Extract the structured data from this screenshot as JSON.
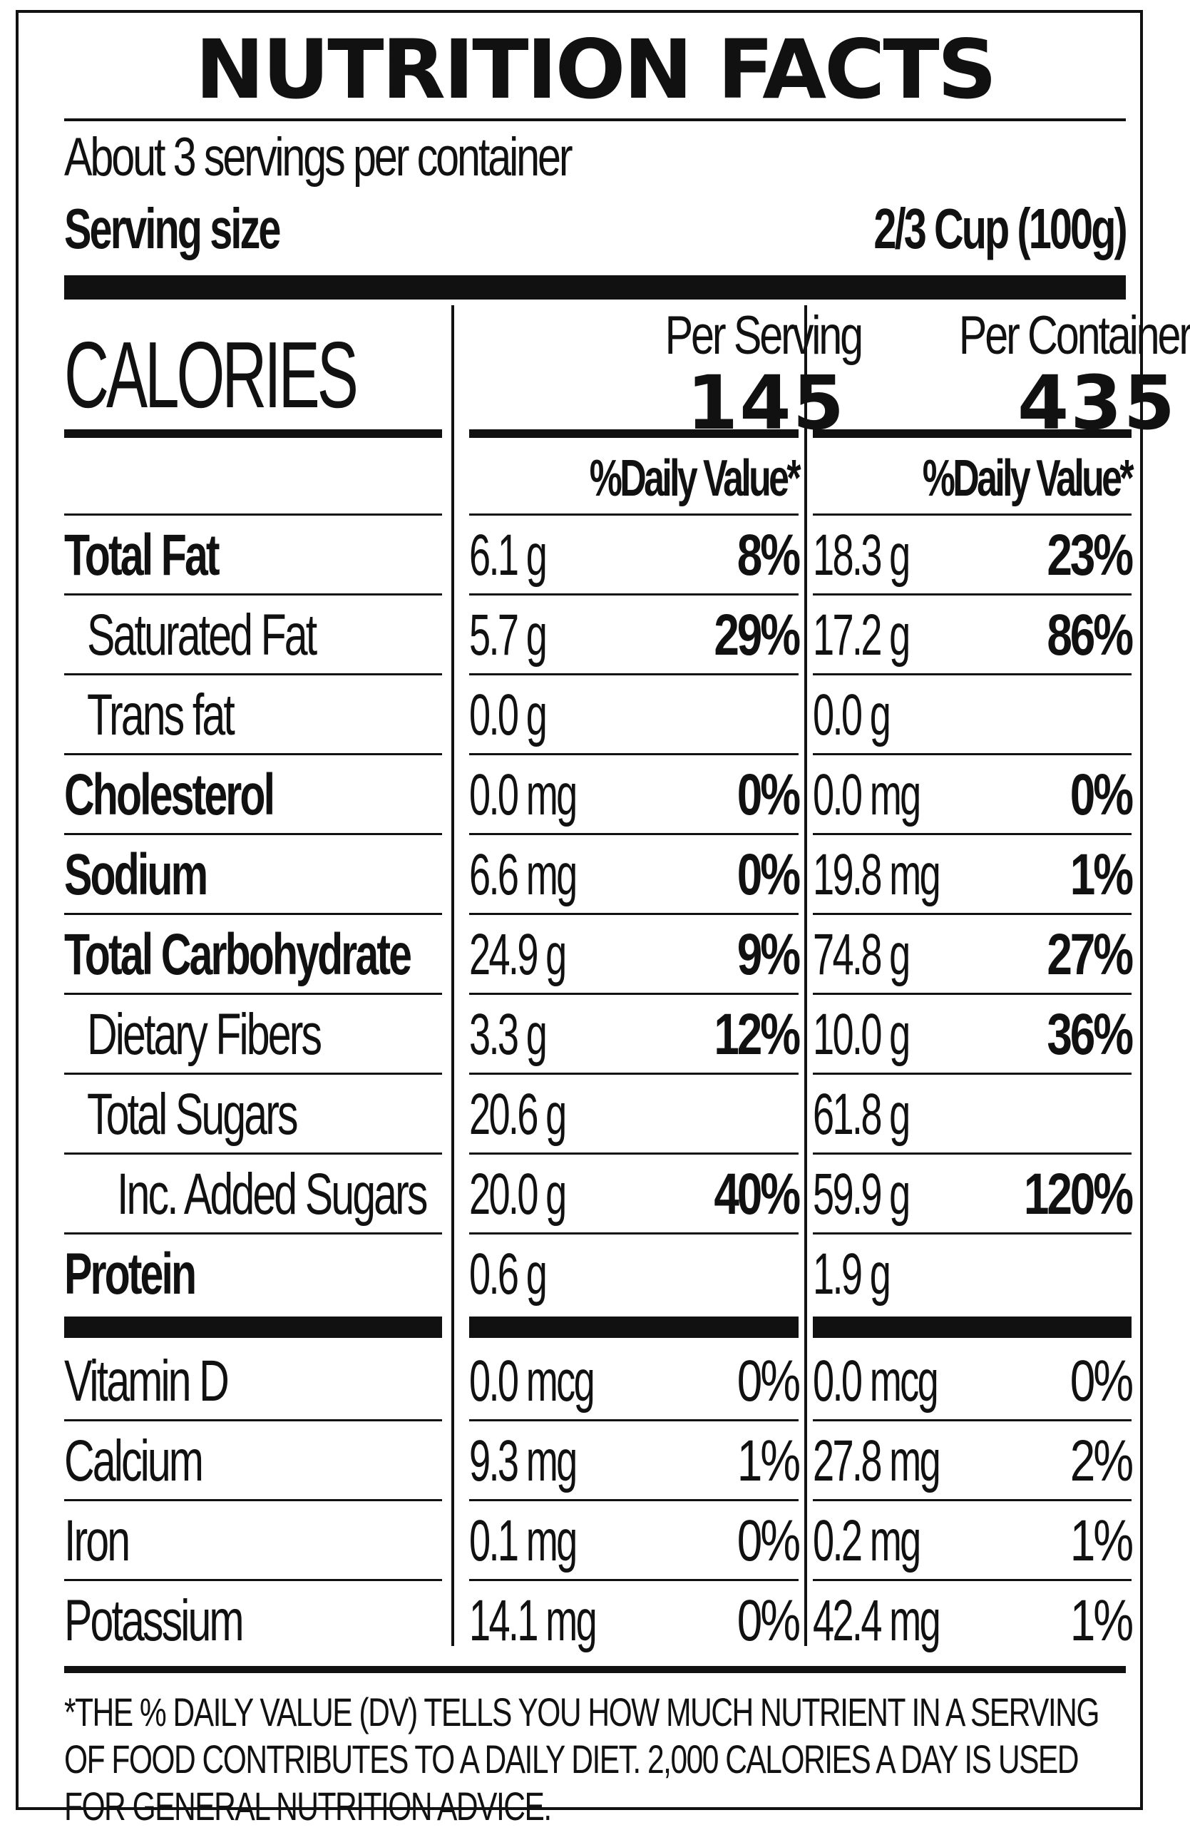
{
  "title": "NUTRITION FACTS",
  "servings_per_container": "About 3 servings per container",
  "serving_size_label": "Serving size",
  "serving_size_value": "2/3 Cup (100g)",
  "calories_label": "CALORIES",
  "columns": [
    {
      "header": "Per Serving",
      "calories": "145",
      "dv_header": "%Daily Value*"
    },
    {
      "header": "Per Container",
      "calories": "435",
      "dv_header": "%Daily Value*"
    }
  ],
  "nutrients": [
    {
      "name": "Total Fat",
      "bold": true,
      "indent": 0,
      "serving": {
        "amount": "6.1 g",
        "dv": "8%"
      },
      "container": {
        "amount": "18.3 g",
        "dv": "23%"
      }
    },
    {
      "name": "Saturated Fat",
      "bold": false,
      "indent": 1,
      "serving": {
        "amount": "5.7 g",
        "dv": "29%"
      },
      "container": {
        "amount": "17.2 g",
        "dv": "86%"
      }
    },
    {
      "name": "Trans fat",
      "bold": false,
      "indent": 1,
      "serving": {
        "amount": "0.0 g",
        "dv": ""
      },
      "container": {
        "amount": "0.0 g",
        "dv": ""
      }
    },
    {
      "name": "Cholesterol",
      "bold": true,
      "indent": 0,
      "serving": {
        "amount": "0.0 mg",
        "dv": "0%"
      },
      "container": {
        "amount": "0.0 mg",
        "dv": "0%"
      }
    },
    {
      "name": "Sodium",
      "bold": true,
      "indent": 0,
      "serving": {
        "amount": "6.6 mg",
        "dv": "0%"
      },
      "container": {
        "amount": "19.8 mg",
        "dv": "1%"
      }
    },
    {
      "name": "Total Carbohydrate",
      "bold": true,
      "indent": 0,
      "serving": {
        "amount": "24.9 g",
        "dv": "9%"
      },
      "container": {
        "amount": "74.8 g",
        "dv": "27%"
      }
    },
    {
      "name": "Dietary Fibers",
      "bold": false,
      "indent": 1,
      "serving": {
        "amount": "3.3 g",
        "dv": "12%"
      },
      "container": {
        "amount": "10.0 g",
        "dv": "36%"
      }
    },
    {
      "name": "Total Sugars",
      "bold": false,
      "indent": 1,
      "serving": {
        "amount": "20.6 g",
        "dv": ""
      },
      "container": {
        "amount": "61.8 g",
        "dv": ""
      }
    },
    {
      "name": "Inc. Added Sugars",
      "bold": false,
      "indent": 2,
      "serving": {
        "amount": "20.0 g",
        "dv": "40%"
      },
      "container": {
        "amount": "59.9 g",
        "dv": "120%"
      }
    },
    {
      "name": "Protein",
      "bold": true,
      "indent": 0,
      "serving": {
        "amount": "0.6 g",
        "dv": ""
      },
      "container": {
        "amount": "1.9 g",
        "dv": ""
      }
    }
  ],
  "vitamins": [
    {
      "name": "Vitamin D",
      "serving": {
        "amount": "0.0 mcg",
        "dv": "0%"
      },
      "container": {
        "amount": "0.0 mcg",
        "dv": "0%"
      }
    },
    {
      "name": "Calcium",
      "serving": {
        "amount": "9.3 mg",
        "dv": "1%"
      },
      "container": {
        "amount": "27.8 mg",
        "dv": "2%"
      }
    },
    {
      "name": "Iron",
      "serving": {
        "amount": "0.1 mg",
        "dv": "0%"
      },
      "container": {
        "amount": "0.2 mg",
        "dv": "1%"
      }
    },
    {
      "name": "Potassium",
      "serving": {
        "amount": "14.1 mg",
        "dv": "0%"
      },
      "container": {
        "amount": "42.4 mg",
        "dv": "1%"
      }
    }
  ],
  "footnote": "*THE % DAILY VALUE (DV) TELLS YOU HOW MUCH NUTRIENT IN A SERVING OF FOOD CONTRIBUTES TO A DAILY DIET. 2,000 CALORIES A DAY IS USED FOR GENERAL NUTRITION ADVICE."
}
